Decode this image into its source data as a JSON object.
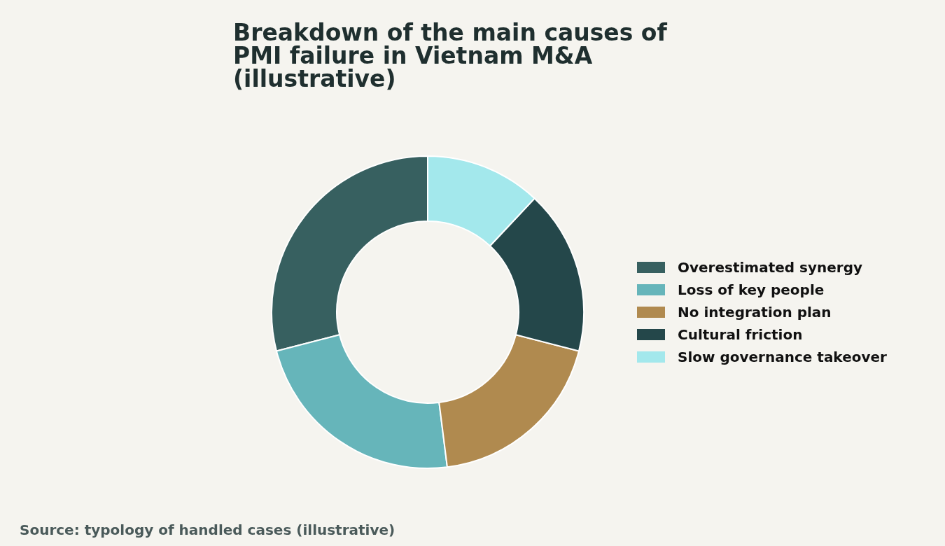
{
  "chart_data": {
    "type": "donut",
    "title": "Breakdown of the main causes of PMI failure in Vietnam M&A (illustrative)",
    "categories": [
      "Overestimated synergy",
      "Loss of key people",
      "No integration plan",
      "Cultural friction",
      "Slow governance takeover"
    ],
    "values": [
      29,
      23,
      19,
      17,
      12
    ],
    "colors": [
      "#376060",
      "#66b5ba",
      "#b08a4f",
      "#24474a",
      "#a3e8ec"
    ],
    "legend": "right",
    "annotations": [
      "Source: typology of handled cases (illustrative)"
    ]
  }
}
